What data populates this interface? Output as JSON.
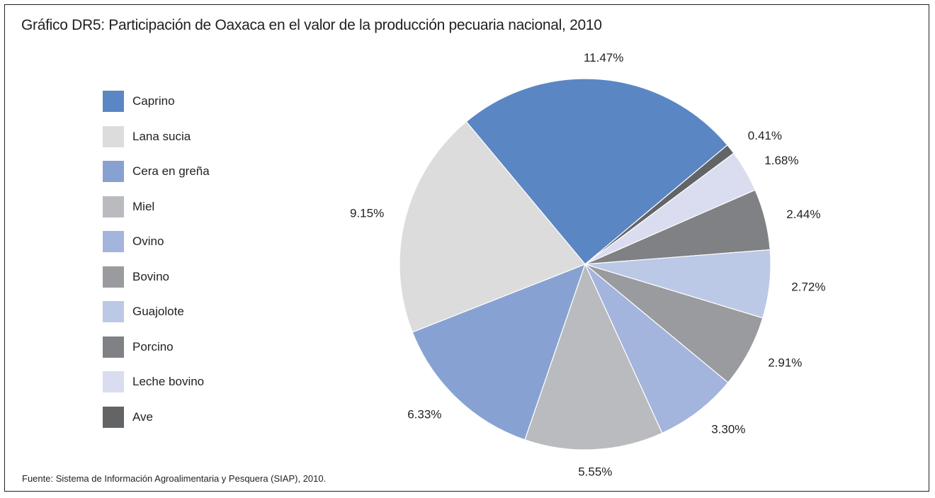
{
  "header": {
    "title": "Gráfico  DR5: Participación   de Oaxaca en el valor  de la producción  pecuaria nacional, 2010"
  },
  "footer": {
    "source": "Fuente: Sistema de Información  Agroalimentaria y Pesquera (SIAP), 2010."
  },
  "chart_data": {
    "type": "pie",
    "title": "Gráfico  DR5: Participación   de Oaxaca en el valor  de la producción  pecuaria nacional, 2010",
    "legend_position": "left",
    "start": "top, clockwise from Caprino",
    "slices": [
      {
        "name": "Caprino",
        "value": 11.47,
        "label": "11.47%",
        "color": "#5b86c4"
      },
      {
        "name": "Ave",
        "value": 0.41,
        "label": "0.41%",
        "color": "#636466"
      },
      {
        "name": "Leche bovino",
        "value": 1.68,
        "label": "1.68%",
        "color": "#dadcef"
      },
      {
        "name": "Porcino",
        "value": 2.44,
        "label": "2.44%",
        "color": "#7f8184"
      },
      {
        "name": "Guajolote",
        "value": 2.72,
        "label": "2.72%",
        "color": "#bbc8e6"
      },
      {
        "name": "Bovino",
        "value": 2.91,
        "label": "2.91%",
        "color": "#9a9b9e"
      },
      {
        "name": "Ovino",
        "value": 3.3,
        "label": "3.30%",
        "color": "#a3b4dd"
      },
      {
        "name": "Miel",
        "value": 5.55,
        "label": "5.55%",
        "color": "#b9bbbe"
      },
      {
        "name": "Cera en greña",
        "value": 6.33,
        "label": "6.33%",
        "color": "#87a2d2"
      },
      {
        "name": "Lana sucia",
        "value": 9.15,
        "label": "9.15%",
        "color": "#dcdcdd"
      }
    ],
    "legend": [
      {
        "name": "Caprino",
        "color": "#5b86c4"
      },
      {
        "name": "Lana sucia",
        "color": "#dcdcdd"
      },
      {
        "name": "Cera en greña",
        "color": "#87a2d2"
      },
      {
        "name": "Miel",
        "color": "#b9bbbe"
      },
      {
        "name": "Ovino",
        "color": "#a3b4dd"
      },
      {
        "name": "Bovino",
        "color": "#9a9b9e"
      },
      {
        "name": "Guajolote",
        "color": "#bbc8e6"
      },
      {
        "name": "Porcino",
        "color": "#7f8184"
      },
      {
        "name": "Leche bovino",
        "color": "#dadcef"
      },
      {
        "name": "Ave",
        "color": "#636466"
      }
    ]
  }
}
